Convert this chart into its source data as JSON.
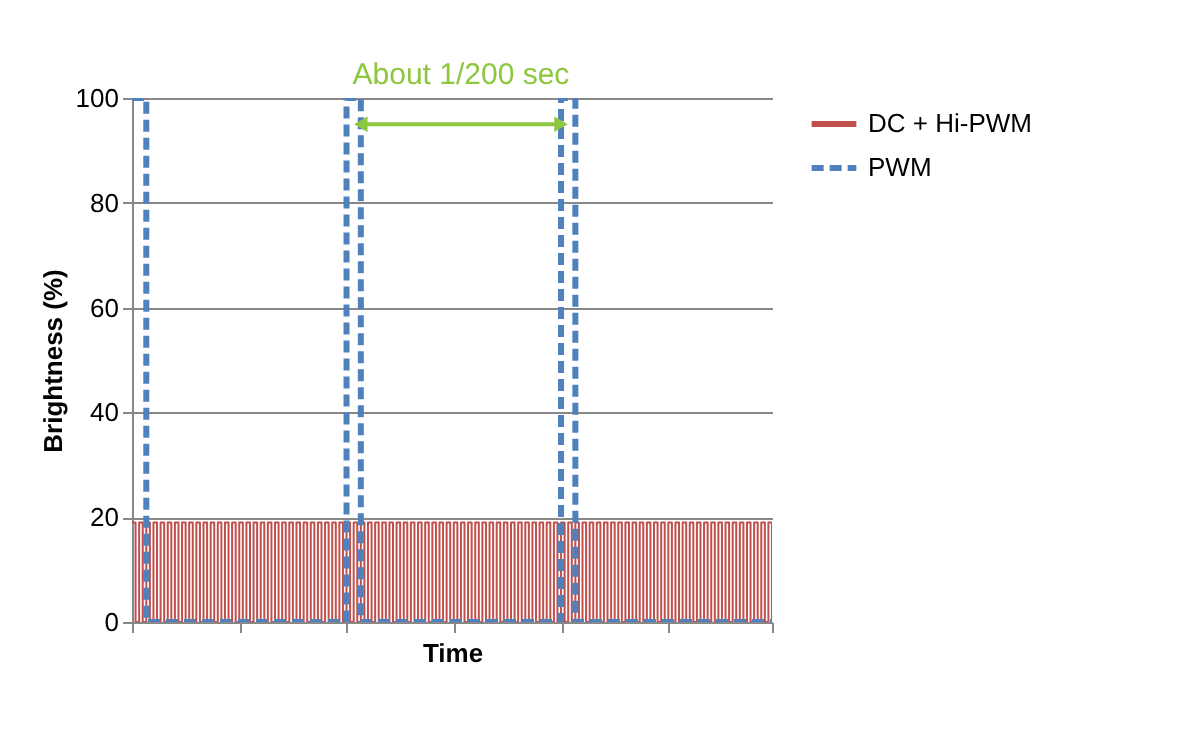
{
  "chart_data": {
    "type": "step",
    "xlabel": "Time",
    "ylabel": "Brightness (%)",
    "categories": [
      null,
      null,
      null,
      null,
      null,
      null,
      null,
      null,
      null,
      null,
      null,
      null,
      null,
      null,
      null,
      null,
      null,
      null,
      null,
      null,
      null,
      null,
      null,
      null,
      null,
      null,
      null,
      null,
      null,
      null,
      null,
      null,
      null,
      null,
      null,
      null,
      null,
      null,
      null,
      null,
      null,
      null,
      null,
      null,
      null,
      null,
      null,
      null,
      null,
      null,
      null,
      null,
      null,
      null,
      null,
      null,
      null,
      null,
      null,
      null,
      null,
      null,
      null,
      null,
      null,
      null,
      null,
      null,
      null,
      null,
      null,
      null,
      null,
      null,
      null,
      null,
      null,
      null,
      null,
      null,
      null,
      null,
      null,
      null,
      null,
      null,
      null,
      null,
      null,
      null,
      null,
      null,
      null,
      null,
      null,
      null,
      null,
      null,
      null,
      null,
      null,
      null,
      null,
      null,
      null,
      null,
      null,
      null,
      null,
      null,
      null,
      null,
      null,
      null,
      null,
      null,
      null,
      null,
      null,
      null,
      null,
      null,
      null,
      null,
      null,
      null,
      null,
      null,
      null,
      null,
      null,
      null,
      null,
      null,
      null,
      null,
      null,
      null,
      null,
      null,
      null,
      null,
      null,
      null,
      null,
      null,
      null,
      null,
      null,
      null,
      null,
      null,
      null,
      null,
      null,
      null,
      null,
      null,
      null,
      null,
      null,
      null,
      null,
      null,
      null,
      null,
      null,
      null,
      null,
      null,
      null,
      null,
      null,
      null,
      null,
      null,
      null,
      null,
      null,
      null
    ],
    "series": [
      {
        "name": "DC + Hi-PWM",
        "color": "#c0504d",
        "line_style": "solid",
        "values": [
          19,
          0,
          19,
          0,
          19,
          0,
          19,
          0,
          19,
          0,
          19,
          0,
          19,
          0,
          19,
          0,
          19,
          0,
          19,
          0,
          19,
          0,
          19,
          0,
          19,
          0,
          19,
          0,
          19,
          0,
          19,
          0,
          19,
          0,
          19,
          0,
          19,
          0,
          19,
          0,
          19,
          0,
          19,
          0,
          19,
          0,
          19,
          0,
          19,
          0,
          19,
          0,
          19,
          0,
          19,
          0,
          19,
          0,
          19,
          0,
          19,
          0,
          19,
          0,
          19,
          0,
          19,
          0,
          19,
          0,
          19,
          0,
          19,
          0,
          19,
          0,
          19,
          0,
          19,
          0,
          19,
          0,
          19,
          0,
          19,
          0,
          19,
          0,
          19,
          0,
          19,
          0,
          19,
          0,
          19,
          0,
          19,
          0,
          19,
          0,
          19,
          0,
          19,
          0,
          19,
          0,
          19,
          0,
          19,
          0,
          19,
          0,
          19,
          0,
          19,
          0,
          19,
          0,
          19,
          0,
          19,
          0,
          19,
          0,
          19,
          0,
          19,
          0,
          19,
          0,
          19,
          0,
          19,
          0,
          19,
          0,
          19,
          0,
          19,
          0,
          19,
          0,
          19,
          0,
          19,
          0,
          19,
          0,
          19,
          0,
          19,
          0,
          19,
          0,
          19,
          0,
          19,
          0,
          19,
          0,
          19,
          0,
          19,
          0,
          19,
          0,
          19,
          0,
          19,
          0,
          19,
          0,
          19,
          0,
          19,
          0,
          19,
          0,
          19,
          0
        ]
      },
      {
        "name": "PWM",
        "color": "#4f81bd",
        "line_style": "dashed",
        "values": [
          100,
          100,
          100,
          100,
          0,
          0,
          0,
          0,
          0,
          0,
          0,
          0,
          0,
          0,
          0,
          0,
          0,
          0,
          0,
          0,
          0,
          0,
          0,
          0,
          0,
          0,
          0,
          0,
          0,
          0,
          0,
          0,
          0,
          0,
          0,
          0,
          0,
          0,
          0,
          0,
          0,
          0,
          0,
          0,
          0,
          0,
          0,
          0,
          0,
          0,
          0,
          0,
          0,
          0,
          0,
          0,
          0,
          0,
          0,
          0,
          100,
          100,
          100,
          100,
          0,
          0,
          0,
          0,
          0,
          0,
          0,
          0,
          0,
          0,
          0,
          0,
          0,
          0,
          0,
          0,
          0,
          0,
          0,
          0,
          0,
          0,
          0,
          0,
          0,
          0,
          0,
          0,
          0,
          0,
          0,
          0,
          0,
          0,
          0,
          0,
          0,
          0,
          0,
          0,
          0,
          0,
          0,
          0,
          0,
          0,
          0,
          0,
          0,
          0,
          0,
          0,
          0,
          0,
          0,
          0,
          100,
          100,
          100,
          100,
          0,
          0,
          0,
          0,
          0,
          0,
          0,
          0,
          0,
          0,
          0,
          0,
          0,
          0,
          0,
          0,
          0,
          0,
          0,
          0,
          0,
          0,
          0,
          0,
          0,
          0,
          0,
          0,
          0,
          0,
          0,
          0,
          0,
          0,
          0,
          0,
          0,
          0,
          0,
          0,
          0,
          0,
          0,
          0,
          0,
          0,
          0,
          0,
          0,
          0,
          0,
          0,
          0,
          0,
          0,
          0
        ]
      }
    ],
    "ylim": [
      0,
      100
    ],
    "yticks": [
      0,
      20,
      40,
      60,
      80,
      100
    ],
    "grid": "y",
    "legend": "right",
    "annotations": [
      "About 1/200 sec"
    ]
  }
}
